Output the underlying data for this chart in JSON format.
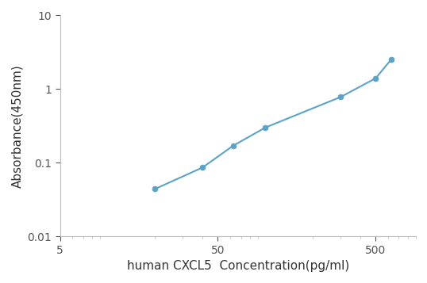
{
  "x": [
    20,
    40,
    62.5,
    100,
    300,
    500,
    625
  ],
  "y": [
    0.044,
    0.086,
    0.17,
    0.3,
    0.78,
    1.4,
    2.5
  ],
  "line_color": "#5BA3C9",
  "marker_color": "#5BA3C9",
  "marker_size": 5,
  "line_width": 1.5,
  "xlabel": "human CXCL5  Concentration(pg/ml)",
  "ylabel": "Absorbance(450nm)",
  "xlim": [
    5,
    900
  ],
  "ylim": [
    0.01,
    10
  ],
  "xticks": [
    5,
    50,
    500
  ],
  "yticks": [
    0.01,
    0.1,
    1,
    10
  ],
  "xlabel_fontsize": 11,
  "ylabel_fontsize": 11,
  "tick_fontsize": 10,
  "background_color": "#ffffff",
  "spine_color": "#bbbbbb"
}
